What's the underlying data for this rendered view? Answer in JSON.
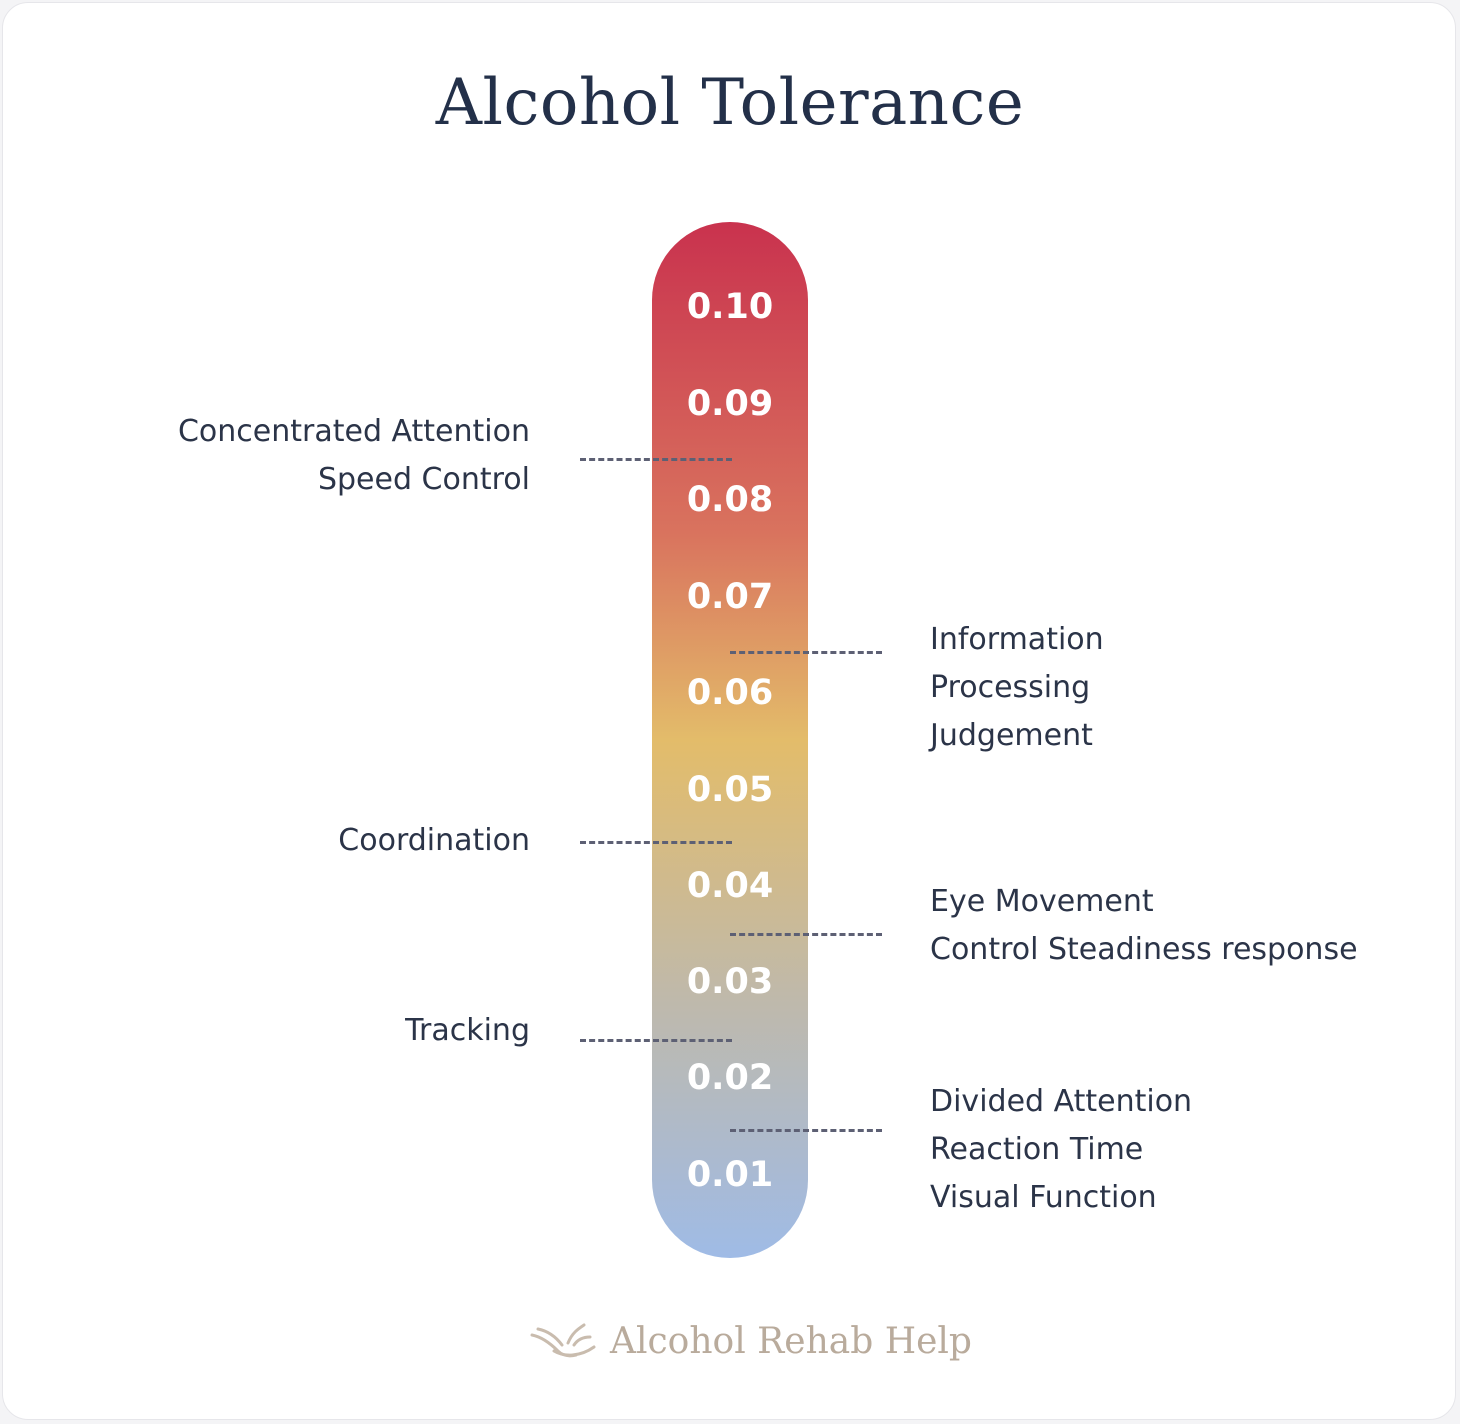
{
  "title": "Alcohol Tolerance",
  "scale": {
    "ticks": [
      "0.10",
      "0.09",
      "0.08",
      "0.07",
      "0.06",
      "0.05",
      "0.04",
      "0.03",
      "0.02",
      "0.01"
    ],
    "gradient_colors": {
      "top": "#c9324e",
      "upper": "#d9735e",
      "middle": "#e3bc6a",
      "lower": "#bfb9ab",
      "bottom": "#9fbbe6"
    }
  },
  "left_labels": [
    {
      "lines": [
        "Concentrated Attention",
        "Speed Control"
      ]
    },
    {
      "lines": [
        "Coordination"
      ]
    },
    {
      "lines": [
        "Tracking"
      ]
    }
  ],
  "right_labels": [
    {
      "lines": [
        "Information",
        "Processing",
        "Judgement"
      ]
    },
    {
      "lines": [
        "Eye Movement",
        "Control Steadiness response"
      ]
    },
    {
      "lines": [
        "Divided Attention",
        "Reaction Time",
        "Visual Function"
      ]
    }
  ],
  "brand": {
    "name": "Alcohol Rehab Help",
    "icon": "hands-flame-logo-icon",
    "color": "#b9ab9c"
  }
}
